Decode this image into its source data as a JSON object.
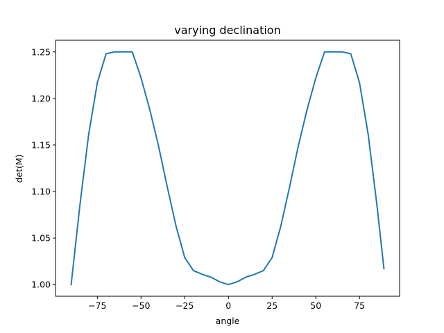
{
  "chart_data": {
    "type": "line",
    "title": "varying declination",
    "xlabel": "angle",
    "ylabel": "det(M)",
    "xlim": [
      -98.95,
      97.95
    ],
    "ylim": [
      0.9875,
      1.2625
    ],
    "x_ticks": [
      -75,
      -50,
      -25,
      0,
      25,
      50,
      75
    ],
    "x_tick_labels": [
      "−75",
      "−50",
      "−25",
      "0",
      "25",
      "50",
      "75"
    ],
    "y_ticks": [
      1.0,
      1.05,
      1.1,
      1.15,
      1.2,
      1.25
    ],
    "y_tick_labels": [
      "1.00",
      "1.05",
      "1.10",
      "1.15",
      "1.20",
      "1.25"
    ],
    "grid": false,
    "series": [
      {
        "color": "#1f77b4",
        "x": [
          -90,
          -85,
          -80,
          -75,
          -70,
          -65,
          -60,
          -55,
          -50,
          -45,
          -40,
          -35,
          -30,
          -25,
          -20,
          -15,
          -10,
          -5,
          0,
          5,
          10,
          15,
          20,
          25,
          30,
          35,
          40,
          45,
          50,
          55,
          60,
          65,
          70,
          75,
          80,
          85,
          89
        ],
        "y": [
          1.0,
          1.085,
          1.161,
          1.217,
          1.248,
          1.25,
          1.25,
          1.25,
          1.222,
          1.188,
          1.149,
          1.105,
          1.063,
          1.029,
          1.015,
          1.011,
          1.008,
          1.003,
          1.0,
          1.003,
          1.008,
          1.011,
          1.015,
          1.029,
          1.063,
          1.105,
          1.149,
          1.188,
          1.222,
          1.25,
          1.25,
          1.25,
          1.248,
          1.217,
          1.161,
          1.085,
          1.017
        ]
      }
    ]
  }
}
